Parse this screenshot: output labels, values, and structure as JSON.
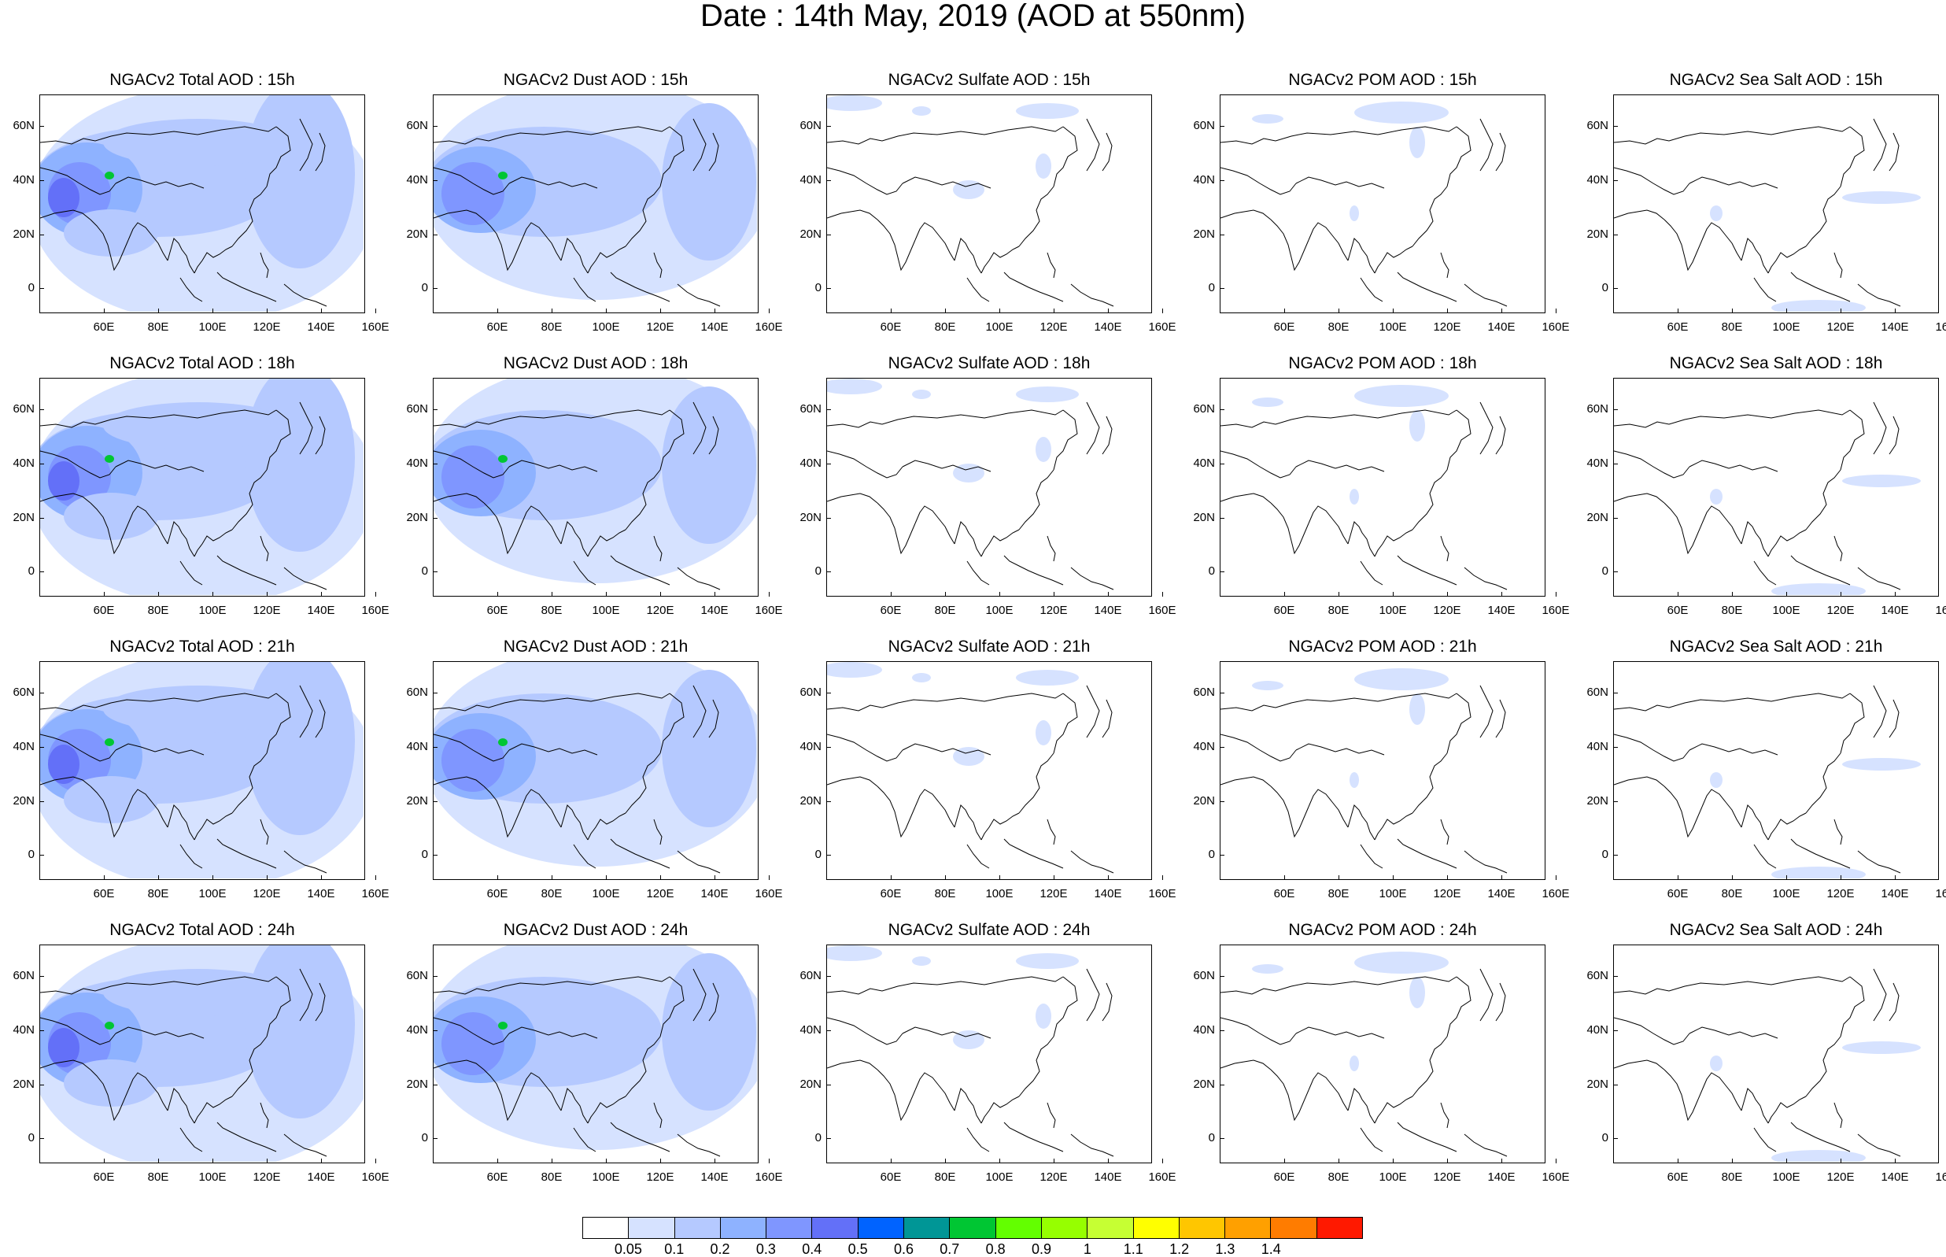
{
  "title": "Date : 14th May, 2019 (AOD at 550nm)",
  "lat_labels": [
    "60N",
    "40N",
    "20N",
    "0"
  ],
  "lon_labels": [
    "60E",
    "80E",
    "100E",
    "120E",
    "140E",
    "160E"
  ],
  "panels": [
    {
      "title": "NGACv2 Total AOD : 15h",
      "species": "total"
    },
    {
      "title": "NGACv2 Dust AOD : 15h",
      "species": "dust"
    },
    {
      "title": "NGACv2 Sulfate AOD : 15h",
      "species": "sulfate"
    },
    {
      "title": "NGACv2 POM AOD : 15h",
      "species": "pom"
    },
    {
      "title": "NGACv2 Sea Salt AOD : 15h",
      "species": "seasalt"
    },
    {
      "title": "NGACv2 Total AOD : 18h",
      "species": "total"
    },
    {
      "title": "NGACv2 Dust AOD : 18h",
      "species": "dust"
    },
    {
      "title": "NGACv2 Sulfate AOD : 18h",
      "species": "sulfate"
    },
    {
      "title": "NGACv2 POM AOD : 18h",
      "species": "pom"
    },
    {
      "title": "NGACv2 Sea Salt AOD : 18h",
      "species": "seasalt"
    },
    {
      "title": "NGACv2 Total AOD : 21h",
      "species": "total"
    },
    {
      "title": "NGACv2 Dust AOD : 21h",
      "species": "dust"
    },
    {
      "title": "NGACv2 Sulfate AOD : 21h",
      "species": "sulfate"
    },
    {
      "title": "NGACv2 POM AOD : 21h",
      "species": "pom"
    },
    {
      "title": "NGACv2 Sea Salt AOD : 21h",
      "species": "seasalt"
    },
    {
      "title": "NGACv2 Total AOD : 24h",
      "species": "total"
    },
    {
      "title": "NGACv2 Dust AOD : 24h",
      "species": "dust"
    },
    {
      "title": "NGACv2 Sulfate AOD : 24h",
      "species": "sulfate"
    },
    {
      "title": "NGACv2 POM AOD : 24h",
      "species": "pom"
    },
    {
      "title": "NGACv2 Sea Salt  AOD : 24h",
      "species": "seasalt"
    }
  ],
  "colorbar": {
    "labels": [
      "0.05",
      "0.1",
      "0.2",
      "0.3",
      "0.4",
      "0.5",
      "0.6",
      "0.7",
      "0.8",
      "0.9",
      "1",
      "1.1",
      "1.2",
      "1.3",
      "1.4"
    ],
    "colors": [
      "#ffffff",
      "#d6e2ff",
      "#b5c9ff",
      "#8eb2ff",
      "#7f96ff",
      "#6370f8",
      "#0063ff",
      "#009696",
      "#00c633",
      "#63ff00",
      "#96ff00",
      "#c6ff33",
      "#ffff00",
      "#ffc600",
      "#ffa000",
      "#ff7c00",
      "#ff1900"
    ]
  },
  "colors": {
    "coast": "#000000",
    "aod_low": "#d6e2ff",
    "aod_mid": "#b5c9ff",
    "aod_high": "#8eb2ff",
    "aod_vhigh": "#7f96ff",
    "aod_peak": "#6370f8",
    "hotspot": "#00c633"
  }
}
